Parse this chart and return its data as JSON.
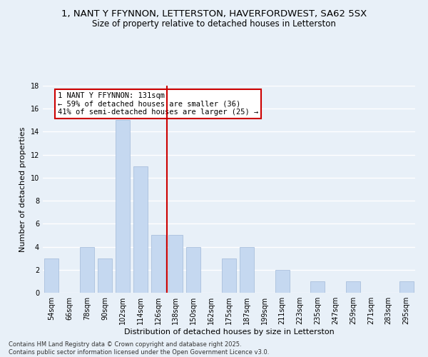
{
  "title": "1, NANT Y FFYNNON, LETTERSTON, HAVERFORDWEST, SA62 5SX",
  "subtitle": "Size of property relative to detached houses in Letterston",
  "xlabel": "Distribution of detached houses by size in Letterston",
  "ylabel": "Number of detached properties",
  "categories": [
    "54sqm",
    "66sqm",
    "78sqm",
    "90sqm",
    "102sqm",
    "114sqm",
    "126sqm",
    "138sqm",
    "150sqm",
    "162sqm",
    "175sqm",
    "187sqm",
    "199sqm",
    "211sqm",
    "223sqm",
    "235sqm",
    "247sqm",
    "259sqm",
    "271sqm",
    "283sqm",
    "295sqm"
  ],
  "values": [
    3,
    0,
    4,
    3,
    15,
    11,
    5,
    5,
    4,
    0,
    3,
    4,
    0,
    2,
    0,
    1,
    0,
    1,
    0,
    0,
    1
  ],
  "bar_color": "#c5d8f0",
  "bar_edge_color": "#a0b8d8",
  "vline_x": 6.5,
  "vline_color": "#cc0000",
  "annotation_text": "1 NANT Y FFYNNON: 131sqm\n← 59% of detached houses are smaller (36)\n41% of semi-detached houses are larger (25) →",
  "annotation_box_color": "#ffffff",
  "annotation_box_edge": "#cc0000",
  "ylim": [
    0,
    18
  ],
  "yticks": [
    0,
    2,
    4,
    6,
    8,
    10,
    12,
    14,
    16,
    18
  ],
  "footer_text": "Contains HM Land Registry data © Crown copyright and database right 2025.\nContains public sector information licensed under the Open Government Licence v3.0.",
  "background_color": "#e8f0f8",
  "grid_color": "#ffffff",
  "title_fontsize": 9.5,
  "subtitle_fontsize": 8.5,
  "axis_label_fontsize": 8,
  "tick_fontsize": 7,
  "annotation_fontsize": 7.5,
  "footer_fontsize": 6
}
